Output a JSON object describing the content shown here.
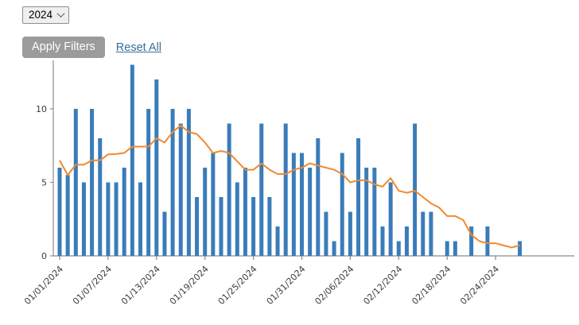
{
  "controls": {
    "year_select": {
      "value": "2024"
    },
    "apply_button_label": "Apply Filters",
    "reset_link_label": "Reset All"
  },
  "colors": {
    "bar": "#3a7cb9",
    "line": "#f0892e",
    "axis": "#8c8c8c",
    "tick_label": "#3c3c3c",
    "button_bg": "#9b9b9b",
    "button_text": "#ffffff",
    "link": "#35709c"
  },
  "chart_data": {
    "type": "bar",
    "title": "",
    "xlabel": "",
    "ylabel": "",
    "x_unit": "day",
    "x_start": "01/01/2024",
    "x_end": "02/27/2024",
    "x_tick_labels": [
      "01/01/2024",
      "01/07/2024",
      "01/13/2024",
      "01/19/2024",
      "01/25/2024",
      "01/31/2024",
      "02/06/2024",
      "02/12/2024",
      "02/18/2024",
      "02/24/2024"
    ],
    "x_tick_day_indices": [
      0,
      6,
      12,
      18,
      24,
      30,
      36,
      42,
      48,
      54
    ],
    "yticks": [
      "0",
      "5",
      "10"
    ],
    "ylim": [
      0,
      13.5
    ],
    "grid": false,
    "legend": "none",
    "series": [
      {
        "name": "daily-bars",
        "type": "bar",
        "color": "#3a7cb9",
        "values": [
          6,
          5.5,
          10,
          5,
          10,
          8,
          5,
          5,
          6,
          13,
          5,
          10,
          12,
          3,
          10,
          9,
          10,
          4,
          6,
          7,
          4,
          9,
          5,
          6,
          4,
          9,
          4,
          2,
          9,
          7,
          7,
          6,
          8,
          3,
          1,
          7,
          3,
          8,
          6,
          6,
          2,
          5,
          1,
          2,
          9,
          3,
          3,
          0,
          1,
          1,
          0,
          2,
          0,
          2,
          0,
          0,
          0,
          1
        ]
      },
      {
        "name": "trend-line",
        "type": "line",
        "color": "#f0892e",
        "values": [
          6.5,
          5.5,
          6.2,
          6.2,
          6.5,
          6.5,
          6.9,
          6.93,
          7.0,
          7.43,
          7.43,
          7.43,
          8.0,
          7.71,
          8.43,
          8.86,
          8.43,
          8.29,
          7.71,
          7.0,
          7.14,
          7.0,
          6.43,
          5.86,
          5.86,
          6.29,
          5.86,
          5.57,
          5.57,
          5.86,
          6.0,
          6.29,
          6.14,
          6.0,
          5.86,
          5.57,
          5.0,
          5.14,
          5.14,
          4.86,
          4.71,
          5.29,
          4.43,
          4.29,
          4.43,
          4.0,
          3.57,
          3.29,
          2.71,
          2.71,
          2.43,
          1.43,
          1.0,
          0.86,
          0.86,
          0.71,
          0.57,
          0.71
        ]
      }
    ]
  }
}
